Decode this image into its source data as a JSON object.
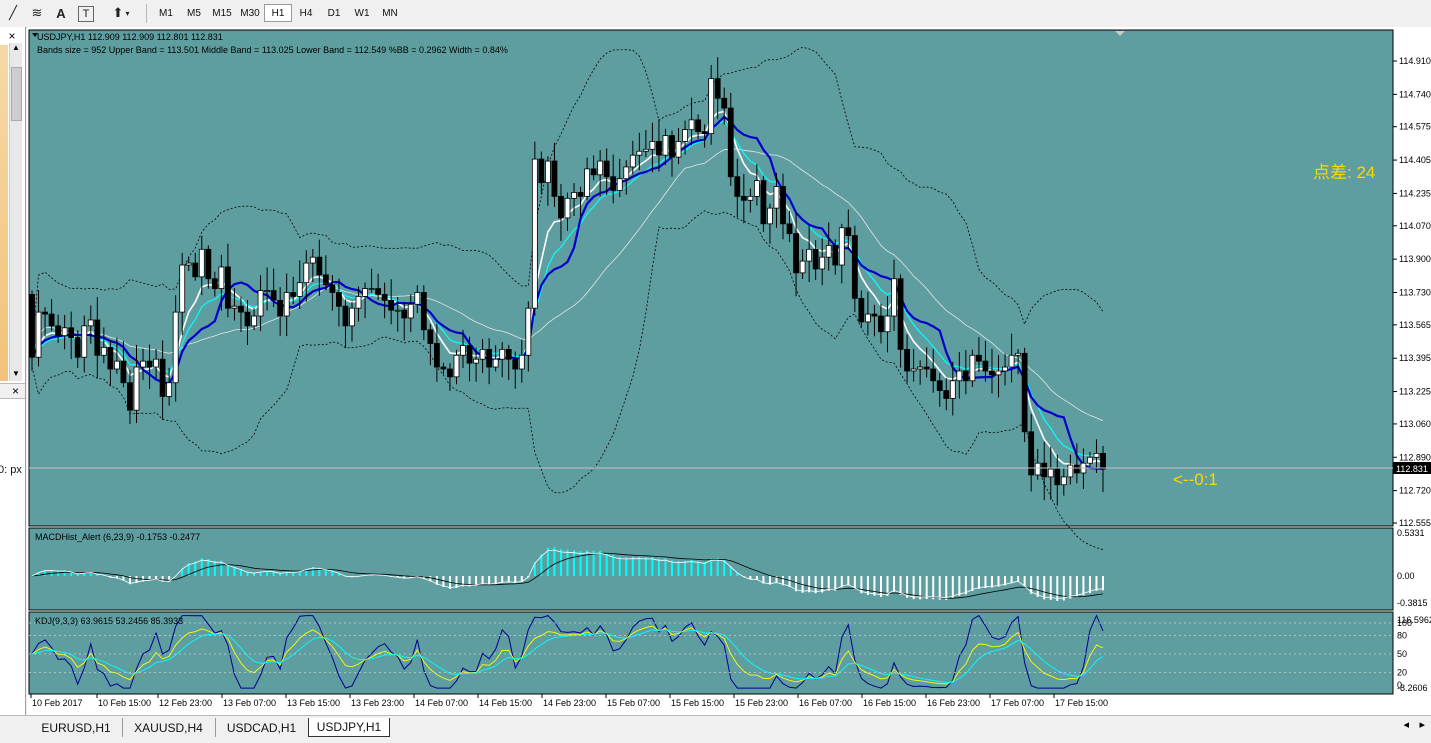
{
  "toolbar": {
    "icons": [
      "draw-line-icon",
      "text-tool-icon",
      "text-label-icon",
      "label-tool-icon",
      "arrows-tool-icon"
    ],
    "icon_glyphs": {
      "draw-line-icon": "╱",
      "text-tool-icon": "≋",
      "text-label-icon": "A",
      "label-tool-icon": "T",
      "arrows-tool-icon": "⬆"
    },
    "timeframes": [
      "M1",
      "M5",
      "M15",
      "M30",
      "H1",
      "H4",
      "D1",
      "W1",
      "MN"
    ],
    "active_timeframe": "H1"
  },
  "left_panel": {
    "cut_text": "0: px"
  },
  "main_chart": {
    "header": "USDJPY,H1  112.909 112.909 112.801 112.831",
    "bands_info": "Bands size = 952 Upper Band = 113.501 Middle Band = 113.025 Lower Band = 112.549 %BB = 0.2962 Width = 0.84%",
    "spread_label": "点差: 24",
    "countdown_label": "<--0:1",
    "current_price": "112.831",
    "price_axis": [
      "114.910",
      "114.740",
      "114.575",
      "114.405",
      "114.235",
      "114.070",
      "113.900",
      "113.730",
      "113.565",
      "113.395",
      "113.225",
      "113.060",
      "112.890",
      "112.720",
      "112.555"
    ]
  },
  "macd_panel": {
    "label": "MACDHist_Alert (6,23,9)  -0.1753 -0.2477",
    "axis": [
      "0.5331",
      "0.00",
      "-0.3815"
    ]
  },
  "kdj_panel": {
    "label": "KDJ(9,3,3) 63.9615 53.2456 85.3933",
    "axis": [
      "116.5962",
      "100",
      "80",
      "50",
      "20",
      "0",
      "-8.2606"
    ]
  },
  "time_axis": [
    "10 Feb 2017",
    "10 Feb 15:00",
    "12 Feb 23:00",
    "13 Feb 07:00",
    "13 Feb 15:00",
    "13 Feb 23:00",
    "14 Feb 07:00",
    "14 Feb 15:00",
    "14 Feb 23:00",
    "15 Feb 07:00",
    "15 Feb 15:00",
    "15 Feb 23:00",
    "16 Feb 07:00",
    "16 Feb 15:00",
    "16 Feb 23:00",
    "17 Feb 07:00",
    "17 Feb 15:00"
  ],
  "tabs": [
    "EURUSD,H1",
    "XAUUSD,H4",
    "USDCAD,H1",
    "USDJPY,H1"
  ],
  "active_tab": "USDJPY,H1",
  "colors": {
    "chart_bg": "#5f9ea0",
    "bull": "#ffffff",
    "bear": "#000000",
    "ma_fast": "#00ffff",
    "ma_slow": "#0000cd",
    "ma_white": "#ffffff",
    "label_yellow": "#ffd700"
  },
  "price_data": {
    "closes": [
      113.4,
      113.63,
      113.62,
      113.56,
      113.51,
      113.55,
      113.5,
      113.4,
      113.56,
      113.59,
      113.41,
      113.45,
      113.34,
      113.38,
      113.27,
      113.13,
      113.35,
      113.38,
      113.35,
      113.39,
      113.2,
      113.27,
      113.63,
      113.87,
      113.88,
      113.81,
      113.95,
      113.8,
      113.75,
      113.86,
      113.65,
      113.66,
      113.63,
      113.56,
      113.61,
      113.74,
      113.74,
      113.69,
      113.61,
      113.73,
      113.71,
      113.78,
      113.88,
      113.91,
      113.82,
      113.77,
      113.73,
      113.66,
      113.56,
      113.65,
      113.71,
      113.75,
      113.75,
      113.72,
      113.69,
      113.64,
      113.64,
      113.6,
      113.67,
      113.73,
      113.54,
      113.47,
      113.35,
      113.34,
      113.3,
      113.41,
      113.46,
      113.37,
      113.39,
      113.44,
      113.35,
      113.39,
      113.44,
      113.39,
      113.34,
      113.41,
      113.65,
      114.41,
      114.29,
      114.4,
      114.22,
      114.11,
      114.21,
      114.24,
      114.22,
      114.36,
      114.33,
      114.4,
      114.32,
      114.25,
      114.31,
      114.37,
      114.43,
      114.45,
      114.46,
      114.5,
      114.43,
      114.53,
      114.42,
      114.5,
      114.56,
      114.61,
      114.55,
      114.54,
      114.82,
      114.72,
      114.67,
      114.32,
      114.22,
      114.2,
      114.22,
      114.3,
      114.08,
      114.16,
      114.27,
      114.08,
      114.03,
      113.83,
      113.89,
      113.95,
      113.85,
      113.91,
      113.97,
      113.87,
      114.06,
      114.02,
      113.7,
      113.58,
      113.62,
      113.61,
      113.53,
      113.61,
      113.8,
      113.44,
      113.33,
      113.34,
      113.35,
      113.34,
      113.28,
      113.23,
      113.19,
      113.28,
      113.33,
      113.28,
      113.41,
      113.38,
      113.33,
      113.31,
      113.33,
      113.35,
      113.41,
      113.42,
      113.02,
      112.8,
      112.86,
      112.79,
      112.83,
      112.75,
      112.79,
      112.85,
      112.81,
      112.86,
      112.89,
      112.91,
      112.83
    ],
    "opens": [
      113.72,
      113.4,
      113.63,
      113.62,
      113.56,
      113.51,
      113.55,
      113.5,
      113.4,
      113.56,
      113.59,
      113.41,
      113.45,
      113.34,
      113.38,
      113.27,
      113.13,
      113.35,
      113.38,
      113.35,
      113.39,
      113.2,
      113.27,
      113.63,
      113.87,
      113.88,
      113.81,
      113.95,
      113.8,
      113.75,
      113.86,
      113.65,
      113.66,
      113.63,
      113.56,
      113.61,
      113.74,
      113.74,
      113.69,
      113.61,
      113.73,
      113.71,
      113.78,
      113.88,
      113.91,
      113.82,
      113.77,
      113.73,
      113.66,
      113.56,
      113.65,
      113.71,
      113.75,
      113.75,
      113.72,
      113.69,
      113.64,
      113.64,
      113.6,
      113.67,
      113.73,
      113.54,
      113.47,
      113.35,
      113.34,
      113.3,
      113.41,
      113.46,
      113.37,
      113.39,
      113.44,
      113.35,
      113.39,
      113.44,
      113.39,
      113.34,
      113.41,
      113.65,
      114.41,
      114.29,
      114.4,
      114.22,
      114.11,
      114.21,
      114.24,
      114.22,
      114.36,
      114.33,
      114.4,
      114.32,
      114.25,
      114.31,
      114.37,
      114.43,
      114.45,
      114.46,
      114.5,
      114.43,
      114.53,
      114.42,
      114.5,
      114.56,
      114.61,
      114.55,
      114.54,
      114.82,
      114.72,
      114.67,
      114.32,
      114.22,
      114.2,
      114.22,
      114.3,
      114.08,
      114.16,
      114.27,
      114.08,
      114.03,
      113.83,
      113.89,
      113.95,
      113.85,
      113.91,
      113.97,
      113.87,
      114.06,
      114.02,
      113.7,
      113.58,
      113.62,
      113.61,
      113.53,
      113.61,
      113.8,
      113.44,
      113.33,
      113.34,
      113.35,
      113.34,
      113.28,
      113.23,
      113.19,
      113.28,
      113.33,
      113.28,
      113.41,
      113.38,
      113.33,
      113.31,
      113.33,
      113.35,
      113.41,
      113.42,
      113.02,
      112.8,
      112.86,
      112.79,
      112.83,
      112.75,
      112.79,
      112.85,
      112.81,
      112.86,
      112.89,
      112.91
    ]
  }
}
